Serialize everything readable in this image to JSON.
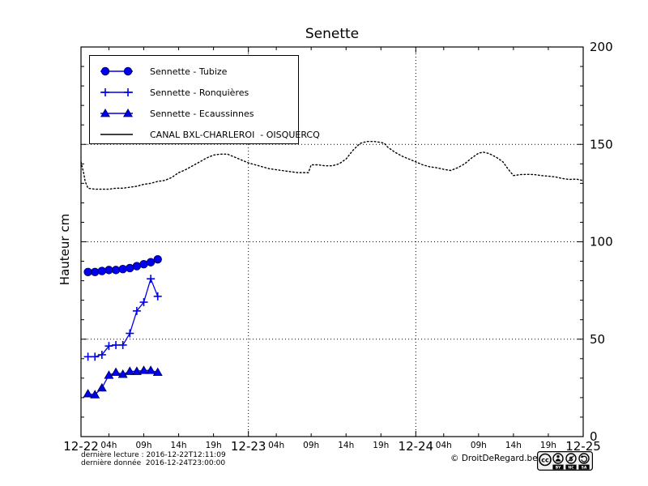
{
  "title": "Senette",
  "ylabel": "Hauteur cm",
  "footer": {
    "last_reading": "dernière lecture : 2016-12-22T12:11:09",
    "last_data": "dernière donnée  2016-12-24T23:00:00",
    "copyright": "© DroitDeRegard.be",
    "cc_badge": {
      "labels": [
        "BY",
        "NC",
        "SA"
      ]
    }
  },
  "colors": {
    "series_blue": "#0000ee",
    "marker_edge": "#000050",
    "canal_black": "#000000",
    "background": "#ffffff"
  },
  "chart_data": {
    "type": "line",
    "title": "Senette",
    "xlabel": "",
    "ylabel": "Hauteur cm",
    "ylim": [
      0,
      200
    ],
    "yticks_major": [
      0,
      50,
      100,
      150,
      200
    ],
    "ytick_minor_step": 10,
    "x_hours_range": [
      0,
      72
    ],
    "x_day_ticks": [
      {
        "hour": 0,
        "label": "12-22"
      },
      {
        "hour": 24,
        "label": "12-23"
      },
      {
        "hour": 48,
        "label": "12-24"
      },
      {
        "hour": 72,
        "label": "12-25"
      }
    ],
    "x_hour_ticks_per_day": [
      {
        "offset": 4,
        "label": "04h"
      },
      {
        "offset": 9,
        "label": "09h"
      },
      {
        "offset": 14,
        "label": "14h"
      },
      {
        "offset": 19,
        "label": "19h"
      }
    ],
    "grid": {
      "horizontal_at": [
        50,
        100,
        150
      ],
      "vertical_at_hours": [
        24,
        48
      ]
    },
    "legend_position": "upper-left",
    "series": [
      {
        "name": "Sennette - Tubize",
        "marker": "circle",
        "line_style": "solid",
        "color": "#0000ee",
        "x_hours": [
          1,
          2,
          3,
          4,
          5,
          6,
          7,
          8,
          9,
          10,
          11
        ],
        "values": [
          84.5,
          84.5,
          85,
          85.5,
          85.5,
          86,
          86.5,
          87.5,
          88.5,
          89.5,
          91
        ]
      },
      {
        "name": "Sennette - Ronquières",
        "marker": "plus",
        "line_style": "solid",
        "color": "#0000ee",
        "x_hours": [
          1,
          2,
          3,
          4,
          5,
          6,
          7,
          8,
          9,
          10,
          11
        ],
        "values": [
          41,
          41,
          42,
          46.5,
          47,
          47,
          53,
          64.5,
          69,
          81,
          72
        ]
      },
      {
        "name": "Sennette - Ecaussinnes",
        "marker": "triangle",
        "line_style": "solid",
        "color": "#0000ee",
        "x_hours": [
          1,
          2,
          3,
          4,
          5,
          6,
          7,
          8,
          9,
          10,
          11
        ],
        "values": [
          22,
          21.5,
          25,
          31.5,
          33,
          32,
          33.5,
          33.5,
          34,
          34,
          33
        ]
      },
      {
        "name": "CANAL BXL-CHARLEROI  - OISQUERCQ",
        "marker": "none",
        "line_style": "dotted",
        "color": "#000000",
        "x_hours": [
          0,
          0.2,
          0.4,
          0.6,
          1,
          2,
          3,
          4,
          5,
          6,
          7,
          8,
          9,
          10,
          11,
          12,
          13,
          14,
          15,
          16,
          17,
          18,
          19,
          20,
          21,
          22,
          23,
          24,
          25,
          26,
          27,
          28,
          29,
          30,
          31,
          32,
          32.6,
          33,
          34,
          35,
          36,
          37,
          38,
          39,
          40,
          41,
          42,
          43,
          43.5,
          44,
          45,
          46,
          47,
          48,
          49,
          50,
          51,
          52,
          53,
          54,
          55,
          56,
          57,
          57.7,
          58.5,
          59.5,
          60.5,
          61.2,
          62,
          63,
          64,
          65,
          66,
          67,
          68,
          69,
          70,
          71,
          72
        ],
        "values": [
          141,
          138,
          135,
          131,
          127.5,
          127,
          127,
          127,
          127.5,
          127.5,
          128,
          128.5,
          129.5,
          130,
          131,
          131.5,
          133,
          135.5,
          137,
          139,
          141,
          143,
          144.5,
          145,
          145,
          143.5,
          142,
          140.5,
          139.5,
          138.5,
          137.5,
          137,
          136.5,
          136,
          135.5,
          135.5,
          135.5,
          139.5,
          139.5,
          139,
          139,
          140,
          142.5,
          147,
          150.5,
          151.5,
          151.5,
          151,
          150.5,
          148.5,
          146,
          144,
          142.5,
          141,
          139.5,
          138.5,
          138,
          137.2,
          136.6,
          138,
          140,
          143,
          145.5,
          146,
          145.3,
          143.5,
          141,
          137.5,
          134,
          134.5,
          134.6,
          134.5,
          134,
          133.7,
          133.3,
          132.5,
          132,
          132.2,
          131.4
        ]
      }
    ]
  }
}
